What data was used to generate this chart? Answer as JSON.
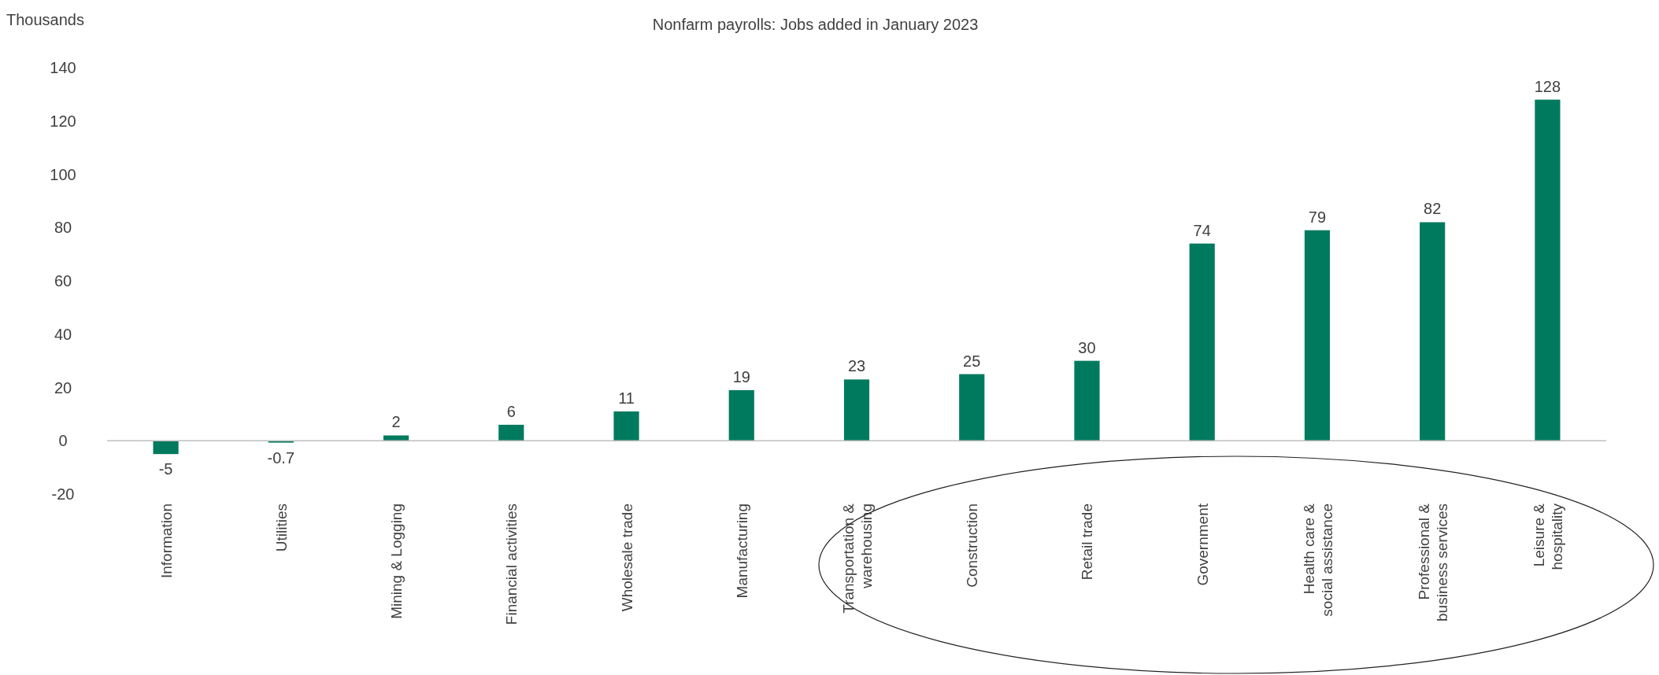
{
  "chart_data": {
    "type": "bar",
    "title": "Nonfarm payrolls: Jobs added in January 2023",
    "ylabel": "Thousands",
    "categories": [
      "Information",
      "Utilities",
      "Mining & Logging",
      "Financial activities",
      "Wholesale trade",
      "Manufacturing",
      "Transportation & warehousing",
      "Construction",
      "Retail trade",
      "Government",
      "Health care & social assistance",
      "Professional & business services",
      "Leisure & hospitality"
    ],
    "values": [
      -5,
      -0.7,
      2,
      6,
      11,
      19,
      23,
      25,
      30,
      74,
      79,
      82,
      128
    ],
    "color": "#007a5e",
    "ylim": [
      -20,
      140
    ],
    "yticks": [
      -20,
      0,
      20,
      40,
      60,
      80,
      100,
      120,
      140
    ],
    "data_labels": true
  }
}
